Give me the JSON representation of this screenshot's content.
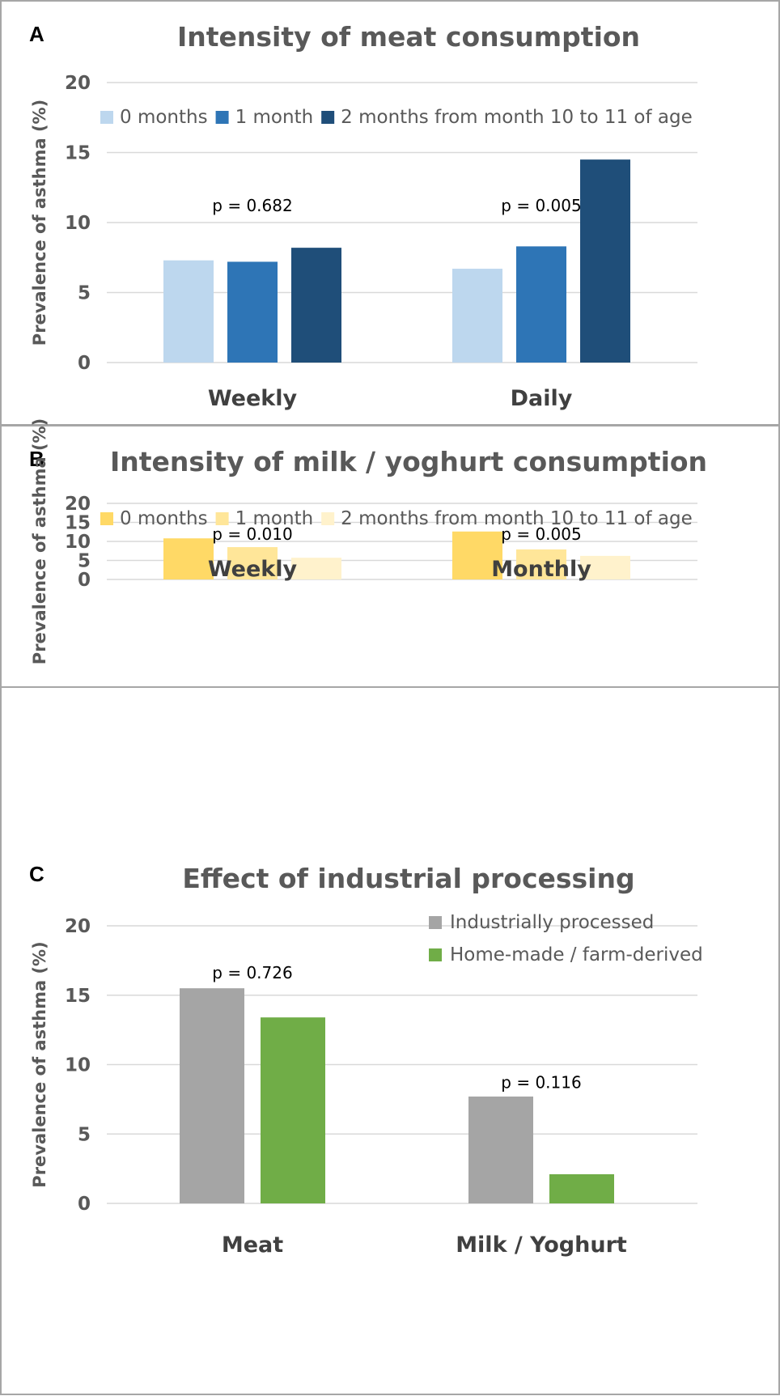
{
  "chart_data": [
    {
      "panel": "A",
      "type": "bar",
      "title": "Intensity of meat consumption",
      "ylabel": "Prevalence of asthma (%)",
      "xlabel": "",
      "ylim": [
        0,
        20
      ],
      "yticks": [
        0,
        5,
        10,
        15,
        20
      ],
      "grid": true,
      "categories": [
        "Weekly",
        "Daily"
      ],
      "series": [
        {
          "name": "0 months",
          "color": "#bdd7ee",
          "values": [
            7.3,
            6.7
          ]
        },
        {
          "name": "1 month",
          "color": "#2e75b6",
          "values": [
            7.2,
            8.3
          ]
        },
        {
          "name": "2 months from month 10 to 11 of age",
          "color": "#1f4e79",
          "values": [
            8.2,
            14.5
          ]
        }
      ],
      "annotations": [
        {
          "category": "Weekly",
          "text": "p = 0.682",
          "y": 10.8
        },
        {
          "category": "Daily",
          "text": "p = 0.005",
          "y": 10.8
        }
      ],
      "legend": "top"
    },
    {
      "panel": "B",
      "type": "bar",
      "title": "Intensity of milk / yoghurt consumption",
      "ylabel": "Prevalence of asthma (%)",
      "xlabel": "",
      "ylim": [
        0,
        20
      ],
      "yticks": [
        0,
        5,
        10,
        15,
        20
      ],
      "grid": true,
      "categories": [
        "Weekly",
        "Monthly"
      ],
      "series": [
        {
          "name": "0 months",
          "color": "#ffd966",
          "values": [
            10.8,
            12.6
          ]
        },
        {
          "name": "1 month",
          "color": "#ffe699",
          "values": [
            8.5,
            7.9
          ]
        },
        {
          "name": "2 months from month 10 to 11 of age",
          "color": "#fff2cc",
          "values": [
            5.7,
            6.2
          ]
        }
      ],
      "annotations": [
        {
          "category": "Weekly",
          "text": "p = 0.010",
          "y": 10.4
        },
        {
          "category": "Monthly",
          "text": "p = 0.005",
          "y": 10.4
        }
      ],
      "legend": "top"
    },
    {
      "panel": "C",
      "type": "bar",
      "title": "Effect of industrial processing",
      "ylabel": "Prevalence of asthma (%)",
      "xlabel": "",
      "ylim": [
        0,
        20
      ],
      "yticks": [
        0,
        5,
        10,
        15,
        20
      ],
      "grid": true,
      "categories": [
        "Meat",
        "Milk / Yoghurt"
      ],
      "series": [
        {
          "name": "Industrially processed",
          "color": "#a5a5a5",
          "values": [
            15.5,
            7.7
          ]
        },
        {
          "name": "Home-made / farm-derived",
          "color": "#70ad47",
          "values": [
            13.4,
            2.1
          ]
        }
      ],
      "annotations": [
        {
          "category": "Meat",
          "text": "p = 0.726",
          "y": 16.2
        },
        {
          "category": "Milk / Yoghurt",
          "text": "p = 0.116",
          "y": 8.3
        }
      ],
      "legend": "top-right"
    }
  ]
}
